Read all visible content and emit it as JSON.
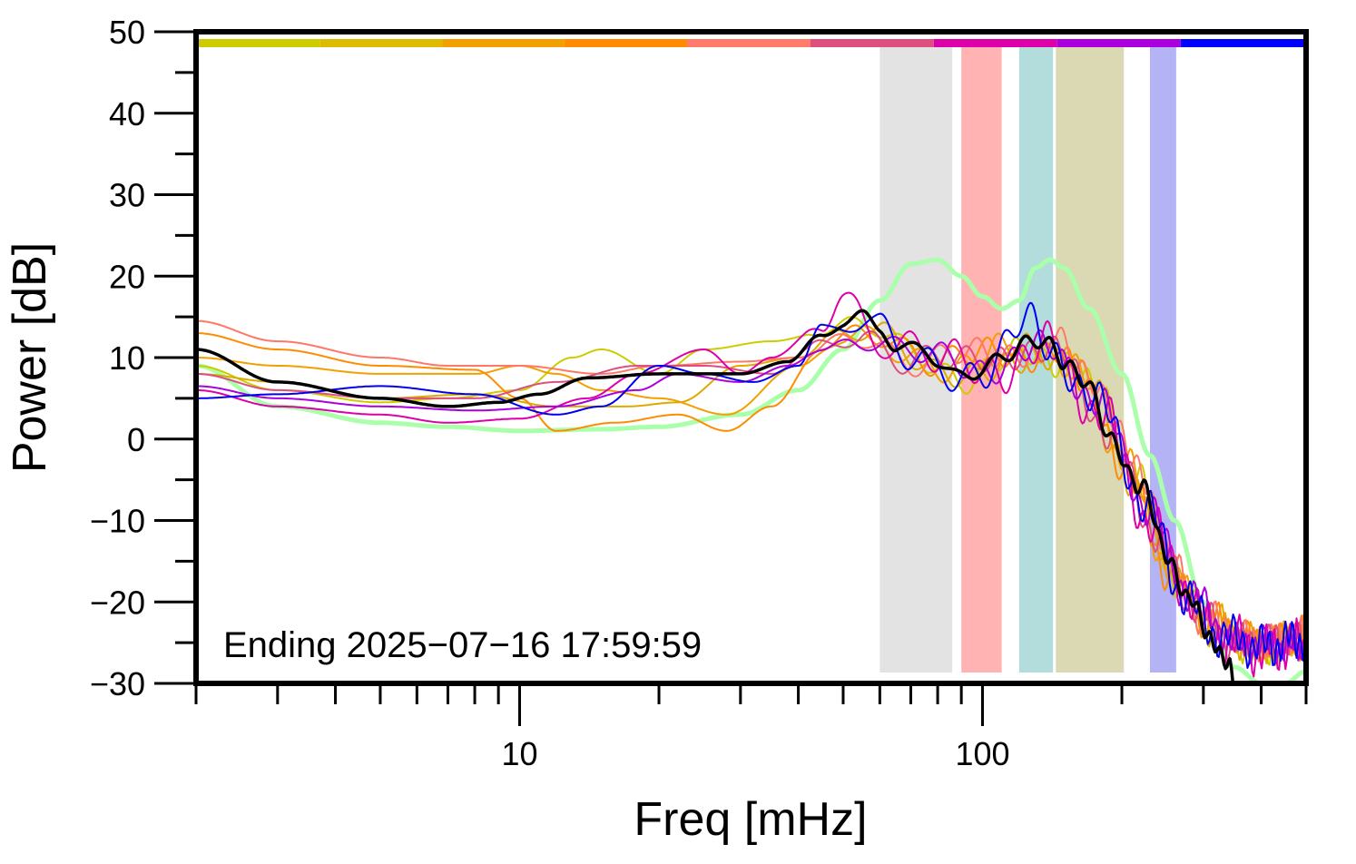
{
  "chart_data": {
    "type": "line",
    "title": "",
    "xlabel": "Freq [mHz]",
    "ylabel": "Power [dB]",
    "annotation": "Ending 2025−07−16 17:59:59",
    "x_scale": "log",
    "xlim": [
      2,
      500
    ],
    "ylim": [
      -30,
      50
    ],
    "x_ticks": [
      {
        "value": 10,
        "label": "10"
      },
      {
        "value": 100,
        "label": "100"
      }
    ],
    "x_minor_ticks": [
      2,
      3,
      4,
      5,
      6,
      7,
      8,
      9,
      20,
      30,
      40,
      50,
      60,
      70,
      80,
      90,
      200,
      300,
      400,
      500
    ],
    "y_ticks": [
      {
        "value": 50,
        "label": "50"
      },
      {
        "value": 40,
        "label": "40"
      },
      {
        "value": 30,
        "label": "30"
      },
      {
        "value": 20,
        "label": "20"
      },
      {
        "value": 10,
        "label": "10"
      },
      {
        "value": 0,
        "label": "0"
      },
      {
        "value": -10,
        "label": "−10"
      },
      {
        "value": -20,
        "label": "−20"
      },
      {
        "value": -30,
        "label": "−30"
      }
    ],
    "y_minor_ticks": [
      45,
      35,
      25,
      15,
      5,
      -5,
      -15,
      -25
    ],
    "bands": [
      {
        "from": 60,
        "to": 86,
        "color": "#e3e3e3"
      },
      {
        "from": 90,
        "to": 110,
        "color": "#ffb3b3"
      },
      {
        "from": 120,
        "to": 142,
        "color": "#b3dcdd"
      },
      {
        "from": 144,
        "to": 202,
        "color": "#dad9b3"
      },
      {
        "from": 230,
        "to": 262,
        "color": "#b3b3f6"
      }
    ],
    "color_strip": [
      {
        "from": 2.0,
        "to": 3.7,
        "color": "#cccc00"
      },
      {
        "from": 3.7,
        "to": 6.8,
        "color": "#ddbb00"
      },
      {
        "from": 6.8,
        "to": 12.5,
        "color": "#f2a000"
      },
      {
        "from": 12.5,
        "to": 23.0,
        "color": "#ff8c00"
      },
      {
        "from": 23.0,
        "to": 42.5,
        "color": "#ff7a6a"
      },
      {
        "from": 42.5,
        "to": 78.5,
        "color": "#dd4f80"
      },
      {
        "from": 78.5,
        "to": 145,
        "color": "#dd00aa"
      },
      {
        "from": 145,
        "to": 268,
        "color": "#aa00dd"
      },
      {
        "from": 268,
        "to": 500,
        "color": "#0000ff"
      }
    ],
    "series": [
      {
        "color": "#aaffaa",
        "width": 5,
        "noise": 0,
        "seed": 0,
        "points": [
          [
            2,
            9
          ],
          [
            3,
            4
          ],
          [
            5,
            2
          ],
          [
            7,
            1.5
          ],
          [
            10,
            1
          ],
          [
            15,
            1.2
          ],
          [
            20,
            1.5
          ],
          [
            30,
            3
          ],
          [
            40,
            6
          ],
          [
            50,
            11
          ],
          [
            60,
            17
          ],
          [
            70,
            21.5
          ],
          [
            80,
            22
          ],
          [
            90,
            20
          ],
          [
            100,
            17.5
          ],
          [
            110,
            16
          ],
          [
            120,
            17
          ],
          [
            130,
            21
          ],
          [
            140,
            22
          ],
          [
            150,
            21
          ],
          [
            170,
            16
          ],
          [
            200,
            8
          ],
          [
            230,
            -2
          ],
          [
            260,
            -10
          ],
          [
            300,
            -20
          ],
          [
            350,
            -28
          ],
          [
            400,
            -30
          ],
          [
            450,
            -30
          ],
          [
            500,
            -28.5
          ]
        ]
      },
      {
        "color": "#cccc00",
        "width": 2,
        "noise": 2.5,
        "seed": 1,
        "points": [
          [
            2,
            9
          ],
          [
            3,
            6
          ],
          [
            5,
            4.5
          ],
          [
            7,
            5
          ],
          [
            10,
            6
          ],
          [
            13,
            10
          ],
          [
            15,
            11
          ],
          [
            20,
            8
          ],
          [
            25,
            11
          ],
          [
            35,
            12
          ],
          [
            45,
            13
          ],
          [
            55,
            14
          ],
          [
            70,
            10
          ],
          [
            90,
            8
          ],
          [
            120,
            10
          ],
          [
            150,
            10
          ],
          [
            180,
            5
          ],
          [
            220,
            -5
          ],
          [
            260,
            -17
          ],
          [
            300,
            -22
          ],
          [
            350,
            -25
          ],
          [
            400,
            -26
          ],
          [
            500,
            -25
          ]
        ]
      },
      {
        "color": "#ddaa00",
        "width": 2,
        "noise": 2.5,
        "seed": 2,
        "points": [
          [
            2,
            8
          ],
          [
            3,
            7
          ],
          [
            5,
            5
          ],
          [
            8,
            5.5
          ],
          [
            12,
            4
          ],
          [
            17,
            4
          ],
          [
            22,
            4.5
          ],
          [
            30,
            9
          ],
          [
            40,
            10
          ],
          [
            50,
            13
          ],
          [
            60,
            12
          ],
          [
            80,
            9
          ],
          [
            110,
            8
          ],
          [
            140,
            11
          ],
          [
            170,
            7
          ],
          [
            220,
            -7
          ],
          [
            260,
            -17
          ],
          [
            300,
            -23
          ],
          [
            400,
            -25.5
          ],
          [
            500,
            -24
          ]
        ]
      },
      {
        "color": "#f2a000",
        "width": 2,
        "noise": 2.5,
        "seed": 3,
        "points": [
          [
            2,
            10
          ],
          [
            3,
            9
          ],
          [
            5,
            8
          ],
          [
            8,
            8
          ],
          [
            10,
            9
          ],
          [
            12,
            8
          ],
          [
            15,
            6
          ],
          [
            20,
            5
          ],
          [
            28,
            3
          ],
          [
            40,
            9
          ],
          [
            50,
            12
          ],
          [
            65,
            11
          ],
          [
            90,
            9
          ],
          [
            130,
            12
          ],
          [
            160,
            8
          ],
          [
            200,
            -2
          ],
          [
            250,
            -15
          ],
          [
            300,
            -22
          ],
          [
            400,
            -25
          ],
          [
            500,
            -24
          ]
        ]
      },
      {
        "color": "#ff8c00",
        "width": 2,
        "noise": 2.5,
        "seed": 4,
        "points": [
          [
            2,
            13
          ],
          [
            3,
            11
          ],
          [
            5,
            9
          ],
          [
            8,
            8.5
          ],
          [
            10,
            5
          ],
          [
            12,
            1
          ],
          [
            16,
            2
          ],
          [
            22,
            3
          ],
          [
            28,
            1
          ],
          [
            35,
            4
          ],
          [
            45,
            11
          ],
          [
            60,
            13
          ],
          [
            80,
            10
          ],
          [
            110,
            10
          ],
          [
            140,
            11
          ],
          [
            170,
            6
          ],
          [
            210,
            -6
          ],
          [
            260,
            -18
          ],
          [
            300,
            -22
          ],
          [
            400,
            -25
          ],
          [
            500,
            -24
          ]
        ]
      },
      {
        "color": "#ff7766",
        "width": 2,
        "noise": 2.5,
        "seed": 5,
        "points": [
          [
            2,
            14.5
          ],
          [
            3,
            12
          ],
          [
            5,
            10
          ],
          [
            7,
            9
          ],
          [
            10,
            9
          ],
          [
            15,
            8
          ],
          [
            20,
            9
          ],
          [
            30,
            9.5
          ],
          [
            40,
            10
          ],
          [
            55,
            13
          ],
          [
            70,
            10
          ],
          [
            100,
            10
          ],
          [
            140,
            12
          ],
          [
            170,
            8
          ],
          [
            220,
            -4
          ],
          [
            260,
            -16
          ],
          [
            300,
            -22
          ],
          [
            400,
            -25
          ],
          [
            500,
            -24
          ]
        ]
      },
      {
        "color": "#dd4f80",
        "width": 2,
        "noise": 2.5,
        "seed": 6,
        "points": [
          [
            2,
            8
          ],
          [
            3,
            6
          ],
          [
            5,
            5
          ],
          [
            8,
            5
          ],
          [
            12,
            7
          ],
          [
            18,
            9
          ],
          [
            25,
            9
          ],
          [
            35,
            8
          ],
          [
            45,
            12
          ],
          [
            55,
            13
          ],
          [
            70,
            10
          ],
          [
            90,
            9
          ],
          [
            120,
            11
          ],
          [
            150,
            10
          ],
          [
            190,
            0
          ],
          [
            240,
            -12
          ],
          [
            280,
            -20
          ],
          [
            350,
            -25
          ],
          [
            500,
            -24.5
          ]
        ]
      },
      {
        "color": "#dd00aa",
        "width": 2,
        "noise": 3.5,
        "seed": 7,
        "points": [
          [
            2,
            6
          ],
          [
            3,
            4
          ],
          [
            5,
            3
          ],
          [
            7,
            2
          ],
          [
            10,
            2.5
          ],
          [
            14,
            5
          ],
          [
            18,
            8
          ],
          [
            25,
            11
          ],
          [
            30,
            8
          ],
          [
            35,
            10
          ],
          [
            45,
            14
          ],
          [
            50,
            18
          ],
          [
            60,
            13
          ],
          [
            80,
            9
          ],
          [
            110,
            9
          ],
          [
            140,
            11
          ],
          [
            180,
            3
          ],
          [
            230,
            -10
          ],
          [
            270,
            -18
          ],
          [
            320,
            -24
          ],
          [
            400,
            -26
          ],
          [
            500,
            -25
          ]
        ]
      },
      {
        "color": "#aa00dd",
        "width": 2,
        "noise": 2.5,
        "seed": 8,
        "points": [
          [
            2,
            6.5
          ],
          [
            3,
            5
          ],
          [
            5,
            4
          ],
          [
            8,
            3.5
          ],
          [
            12,
            4
          ],
          [
            18,
            6
          ],
          [
            22,
            8
          ],
          [
            30,
            7
          ],
          [
            38,
            9
          ],
          [
            45,
            11
          ],
          [
            55,
            13
          ],
          [
            70,
            10
          ],
          [
            100,
            9
          ],
          [
            140,
            11
          ],
          [
            180,
            4
          ],
          [
            230,
            -9
          ],
          [
            280,
            -19
          ],
          [
            350,
            -25
          ],
          [
            500,
            -25.5
          ]
        ]
      },
      {
        "color": "#0000ee",
        "width": 2,
        "noise": 3.0,
        "seed": 9,
        "points": [
          [
            2,
            5
          ],
          [
            3,
            5.5
          ],
          [
            5,
            6.5
          ],
          [
            8,
            5.5
          ],
          [
            12,
            3
          ],
          [
            15,
            4
          ],
          [
            20,
            9
          ],
          [
            25,
            8
          ],
          [
            32,
            7
          ],
          [
            40,
            9
          ],
          [
            45,
            14
          ],
          [
            52,
            15
          ],
          [
            60,
            13
          ],
          [
            70,
            9
          ],
          [
            85,
            8
          ],
          [
            100,
            9
          ],
          [
            125,
            14
          ],
          [
            140,
            11
          ],
          [
            180,
            4
          ],
          [
            230,
            -9
          ],
          [
            270,
            -19
          ],
          [
            320,
            -24
          ],
          [
            400,
            -25.5
          ],
          [
            500,
            -24.5
          ]
        ]
      },
      {
        "color": "#000000",
        "width": 3.5,
        "noise": 1.5,
        "seed": 10,
        "points": [
          [
            2,
            11
          ],
          [
            3,
            7
          ],
          [
            5,
            5
          ],
          [
            7,
            4
          ],
          [
            9,
            4.5
          ],
          [
            11,
            5.5
          ],
          [
            14,
            7.5
          ],
          [
            20,
            8
          ],
          [
            25,
            8
          ],
          [
            30,
            8
          ],
          [
            38,
            9.5
          ],
          [
            45,
            13
          ],
          [
            50,
            14
          ],
          [
            55,
            14.5
          ],
          [
            60,
            13
          ],
          [
            65,
            11
          ],
          [
            80,
            10
          ],
          [
            90,
            8
          ],
          [
            100,
            9
          ],
          [
            115,
            10
          ],
          [
            130,
            12
          ],
          [
            140,
            12
          ],
          [
            150,
            10
          ],
          [
            165,
            7
          ],
          [
            190,
            0
          ],
          [
            220,
            -6
          ],
          [
            250,
            -14
          ],
          [
            280,
            -20
          ],
          [
            310,
            -24
          ],
          [
            340,
            -28
          ],
          [
            350,
            -31
          ]
        ]
      }
    ]
  }
}
